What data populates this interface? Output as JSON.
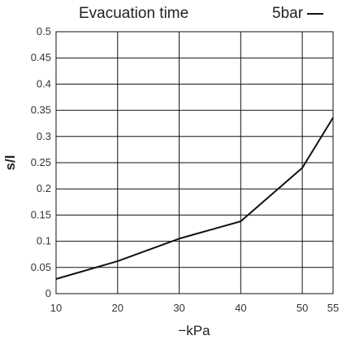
{
  "chart_data": {
    "type": "line",
    "title": "Evacuation time",
    "xlabel": "−kPa",
    "ylabel": "s/l",
    "xlim": [
      10,
      55
    ],
    "ylim": [
      0,
      0.5
    ],
    "x_ticks": [
      10,
      20,
      30,
      40,
      50,
      55
    ],
    "y_ticks": [
      0,
      0.05,
      0.1,
      0.15,
      0.2,
      0.25,
      0.3,
      0.35,
      0.4,
      0.45,
      0.5
    ],
    "grid": true,
    "legend_position": "top-right",
    "series": [
      {
        "name": "5bar",
        "color": "#111111",
        "x": [
          10,
          20,
          30,
          40,
          50,
          55
        ],
        "y": [
          0.028,
          0.062,
          0.105,
          0.138,
          0.24,
          0.336
        ]
      }
    ]
  }
}
